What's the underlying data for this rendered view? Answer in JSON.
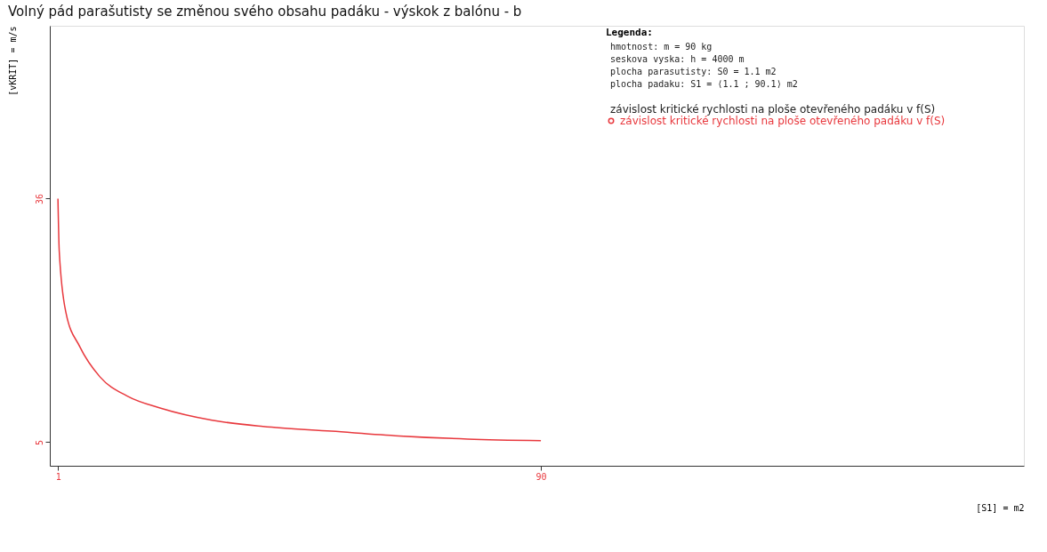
{
  "chart_data": {
    "type": "line",
    "title": "Volný pád parašutisty se změnou svého obsahu padáku - výskok z balónu - b",
    "xlabel": "[S1] = m2",
    "ylabel": "[vKRIT] = m/s",
    "legend_title": "Legenda:",
    "annotations": [
      "hmotnost: m = 90 kg",
      "seskova vyska: h = 4000 m",
      "plocha parasutisty: S0 = 1.1 m2",
      "plocha padaku: S1 = ⟨1.1 ; 90.1⟩ m2",
      "závislost kritické rychlosti na ploše otevřeného padáku v f(S)"
    ],
    "x": [
      1,
      1.24,
      2.47,
      4.99,
      8.76,
      13.7,
      20.1,
      29.4,
      38.8,
      51.4,
      63.9,
      76.5,
      90
    ],
    "series": [
      {
        "name": "závislost kritické rychlosti na ploše otevřeného padáku v f(S)",
        "color": "#e8383d",
        "values": [
          36,
          29.3,
          21.5,
          17.2,
          13.3,
          10.9,
          9.3,
          7.8,
          7.0,
          6.4,
          5.8,
          5.4,
          5.2
        ]
      }
    ],
    "xlim": [
      -0.5,
      179
    ],
    "ylim": [
      2,
      58
    ],
    "xticks": [
      1,
      90
    ],
    "yticks": [
      5,
      36
    ],
    "grid": false,
    "legend": "top right",
    "marker": "none",
    "line_style": "solid"
  }
}
